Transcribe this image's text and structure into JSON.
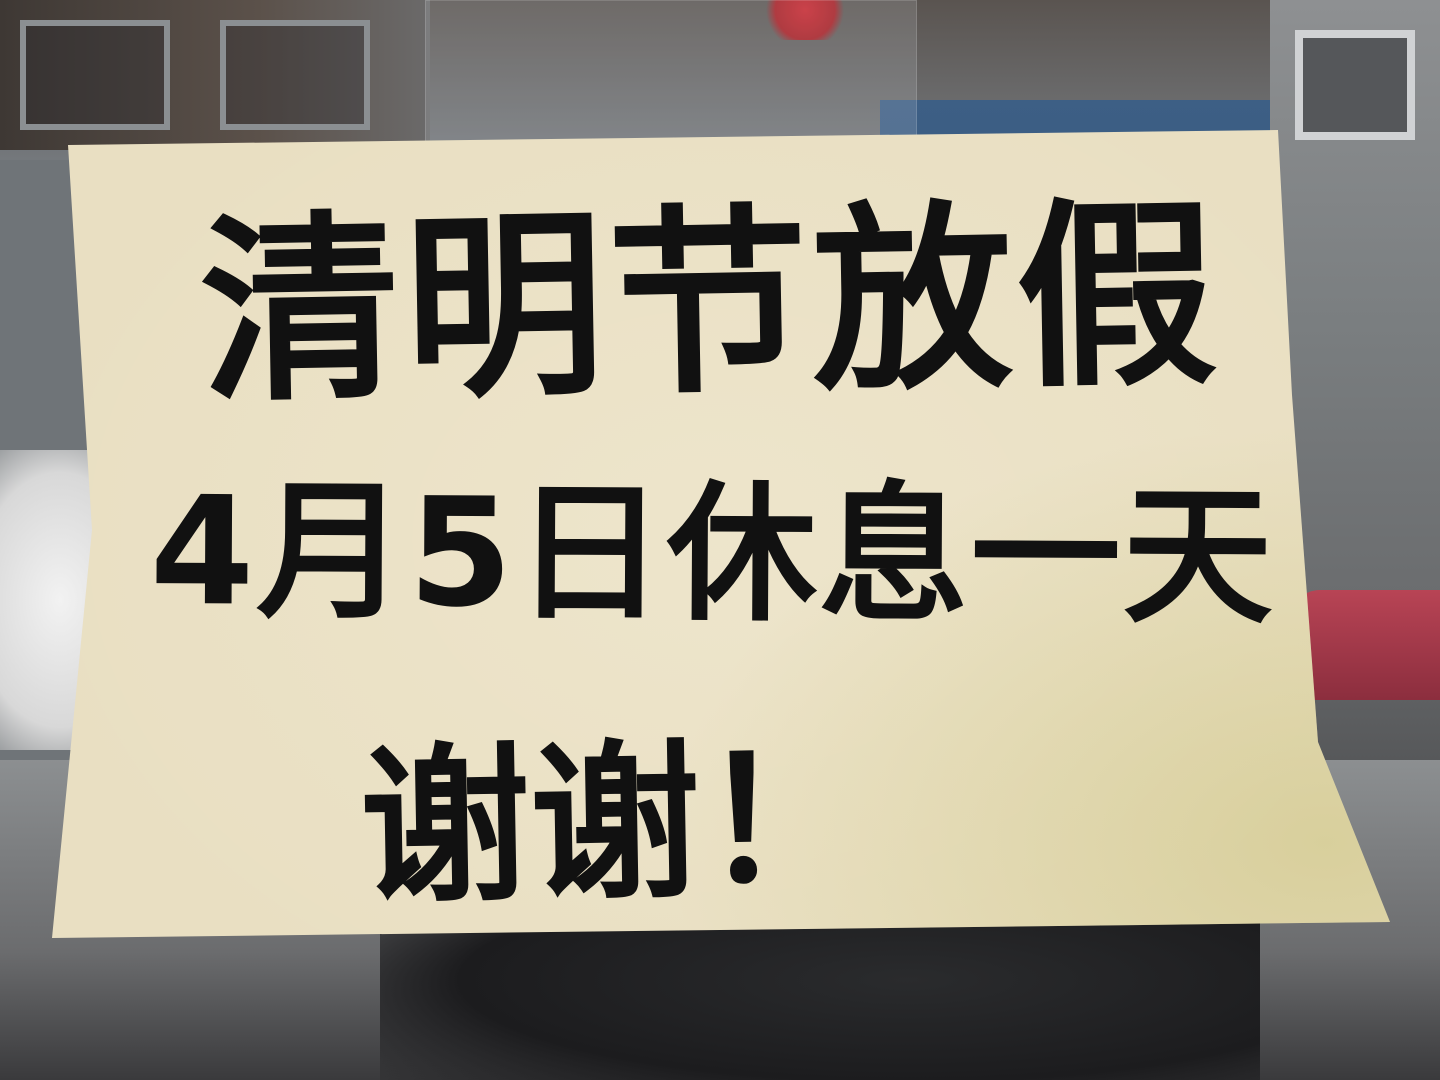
{
  "notice": {
    "line1": "清明节放假",
    "line2": "4月5日休息一天",
    "line3": "谢谢！"
  },
  "colors": {
    "paper": "#e9dfc2",
    "ink": "#111111",
    "blue_sign": "#31517a",
    "red_car": "#b84455",
    "flower": "#c8242c"
  }
}
